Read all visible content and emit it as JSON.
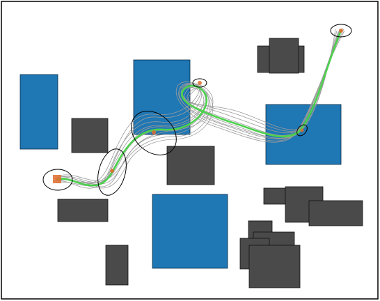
{
  "colors": {
    "background": "#ffffff",
    "frame": "#000000",
    "goal_region": "#1f77b4",
    "obstacle": "#4a4a4a",
    "sample_path": "#9a9a9a",
    "mean_path": "#4cd24c",
    "waypoint_marker": "#e06c2c",
    "uncertainty_ellipse": "#000000"
  },
  "legend": []
}
